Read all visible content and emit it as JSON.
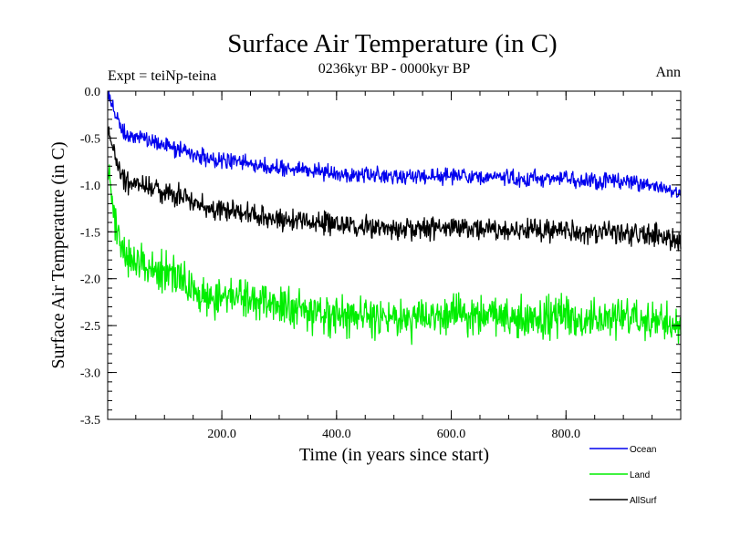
{
  "chart_data": {
    "type": "line",
    "title": "Surface Air Temperature (in C)",
    "subtitle": "0236kyr BP - 0000kyr BP",
    "experiment_label": "Expt = teiNp-teina",
    "season_label": "Ann",
    "xlabel": "Time (in years since start)",
    "ylabel": "Surface Air Temperature (in C)",
    "xlim": [
      1,
      1000
    ],
    "ylim": [
      -3.5,
      0.0
    ],
    "x_ticks": [
      200,
      400,
      600,
      800
    ],
    "x_tick_labels": [
      "200.0",
      "400.0",
      "600.0",
      "800.0"
    ],
    "y_ticks": [
      0.0,
      -0.5,
      -1.0,
      -1.5,
      -2.0,
      -2.5,
      -3.0,
      -3.5
    ],
    "y_tick_labels": [
      "0.0",
      "-0.5",
      "-1.0",
      "-1.5",
      "-2.0",
      "-2.5",
      "-3.0",
      "-3.5"
    ],
    "legend_position": "bottom-right, below plot",
    "x": [
      1,
      20,
      40,
      60,
      80,
      100,
      120,
      140,
      160,
      180,
      200,
      240,
      280,
      320,
      360,
      400,
      440,
      480,
      520,
      560,
      600,
      640,
      680,
      720,
      760,
      800,
      840,
      880,
      920,
      960,
      1000
    ],
    "series": [
      {
        "name": "Ocean",
        "color": "#0000ee",
        "values": [
          -0.02,
          -0.35,
          -0.5,
          -0.48,
          -0.55,
          -0.58,
          -0.62,
          -0.65,
          -0.68,
          -0.72,
          -0.74,
          -0.76,
          -0.8,
          -0.83,
          -0.86,
          -0.88,
          -0.9,
          -0.9,
          -0.92,
          -0.92,
          -0.9,
          -0.92,
          -0.92,
          -0.93,
          -0.93,
          -0.95,
          -0.95,
          -0.95,
          -0.98,
          -1.0,
          -1.1
        ]
      },
      {
        "name": "Land",
        "color": "#00ee00",
        "values": [
          -0.8,
          -1.6,
          -1.8,
          -1.85,
          -1.9,
          -1.92,
          -1.95,
          -2.1,
          -2.15,
          -2.2,
          -2.2,
          -2.2,
          -2.25,
          -2.3,
          -2.35,
          -2.4,
          -2.4,
          -2.42,
          -2.45,
          -2.42,
          -2.4,
          -2.4,
          -2.4,
          -2.42,
          -2.4,
          -2.4,
          -2.42,
          -2.42,
          -2.45,
          -2.42,
          -2.5
        ]
      },
      {
        "name": "AllSurf",
        "color": "#000000",
        "values": [
          -0.4,
          -0.85,
          -1.0,
          -1.0,
          -1.05,
          -1.08,
          -1.1,
          -1.15,
          -1.2,
          -1.25,
          -1.27,
          -1.3,
          -1.35,
          -1.38,
          -1.4,
          -1.42,
          -1.45,
          -1.45,
          -1.47,
          -1.47,
          -1.45,
          -1.46,
          -1.47,
          -1.48,
          -1.48,
          -1.5,
          -1.5,
          -1.5,
          -1.53,
          -1.52,
          -1.6
        ]
      }
    ],
    "noise_amplitude": [
      0.09,
      0.22,
      0.12
    ]
  }
}
